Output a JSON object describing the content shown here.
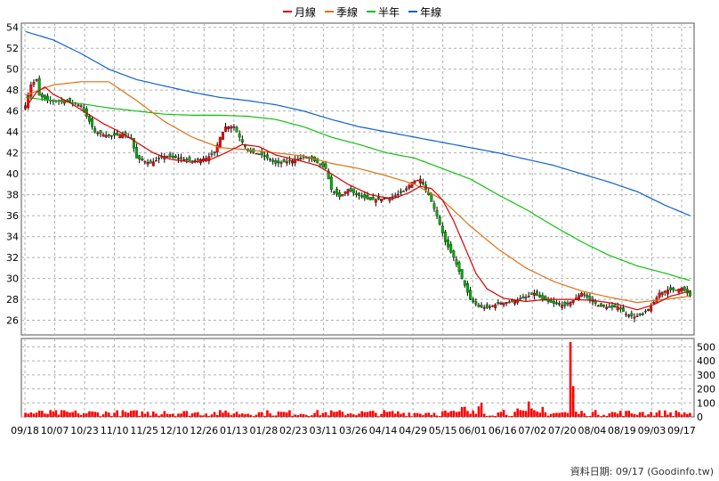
{
  "legend": [
    {
      "label": "月線",
      "color": "#d40000"
    },
    {
      "label": "季線",
      "color": "#e07010"
    },
    {
      "label": "半年",
      "color": "#10c010"
    },
    {
      "label": "年線",
      "color": "#1060d0"
    }
  ],
  "credit": "資料日期: 09/17 (Goodinfo.tw)",
  "colors": {
    "up": "#ff0000",
    "down": "#00b000",
    "volume": "#ff0000",
    "grid": "#b0b0b0"
  },
  "chart_data": {
    "type": "candlestick",
    "price_axis": {
      "ticks": [
        26,
        28,
        30,
        32,
        34,
        36,
        38,
        40,
        42,
        44,
        46,
        48,
        50,
        52,
        54
      ],
      "ylim": [
        24.6,
        54.4
      ]
    },
    "volume_axis": {
      "ticks": [
        0,
        100,
        200,
        300,
        400,
        500
      ],
      "ylim": [
        0,
        560
      ]
    },
    "x_ticks": [
      "09/18",
      "10/07",
      "10/23",
      "11/10",
      "11/25",
      "12/10",
      "12/26",
      "01/13",
      "01/28",
      "02/23",
      "03/11",
      "03/26",
      "04/14",
      "04/29",
      "05/15",
      "06/01",
      "06/16",
      "07/02",
      "07/20",
      "08/04",
      "08/19",
      "09/03",
      "09/17"
    ],
    "candle_count": 240,
    "close_keypoints": [
      [
        0,
        46.5
      ],
      [
        2,
        48.5
      ],
      [
        4,
        49
      ],
      [
        5,
        47.5
      ],
      [
        8,
        47
      ],
      [
        15,
        47
      ],
      [
        20,
        46.5
      ],
      [
        25,
        44
      ],
      [
        30,
        43.6
      ],
      [
        35,
        43.8
      ],
      [
        38,
        43.4
      ],
      [
        40,
        41.5
      ],
      [
        45,
        41
      ],
      [
        50,
        41.7
      ],
      [
        55,
        41.5
      ],
      [
        60,
        41.2
      ],
      [
        65,
        41.5
      ],
      [
        68,
        42
      ],
      [
        70,
        43.5
      ],
      [
        72,
        44.5
      ],
      [
        75,
        44.5
      ],
      [
        78,
        43
      ],
      [
        80,
        42.2
      ],
      [
        85,
        41.8
      ],
      [
        90,
        41
      ],
      [
        95,
        41.2
      ],
      [
        100,
        41.6
      ],
      [
        103,
        41.4
      ],
      [
        108,
        40.5
      ],
      [
        110,
        38.5
      ],
      [
        113,
        37.8
      ],
      [
        116,
        38.5
      ],
      [
        119,
        38
      ],
      [
        124,
        37.5
      ],
      [
        128,
        37.6
      ],
      [
        132,
        37.8
      ],
      [
        136,
        38.3
      ],
      [
        139,
        39.2
      ],
      [
        142,
        39.5
      ],
      [
        145,
        38
      ],
      [
        148,
        36
      ],
      [
        151,
        33.5
      ],
      [
        154,
        32
      ],
      [
        157,
        30
      ],
      [
        160,
        28
      ],
      [
        163,
        27.3
      ],
      [
        166,
        27.2
      ],
      [
        170,
        27.6
      ],
      [
        175,
        27.8
      ],
      [
        180,
        28.2
      ],
      [
        183,
        28.6
      ],
      [
        186,
        28
      ],
      [
        190,
        27.6
      ],
      [
        194,
        27.4
      ],
      [
        197,
        27.9
      ],
      [
        200,
        28.6
      ],
      [
        203,
        28
      ],
      [
        206,
        27.4
      ],
      [
        210,
        27.2
      ],
      [
        213,
        27.3
      ],
      [
        216,
        26.6
      ],
      [
        219,
        26.3
      ],
      [
        222,
        26.6
      ],
      [
        225,
        27.3
      ],
      [
        228,
        28.6
      ],
      [
        231,
        28.9
      ],
      [
        234,
        28.9
      ],
      [
        236,
        29.1
      ],
      [
        238,
        28.6
      ],
      [
        239,
        28.3
      ]
    ],
    "ma_month_keypoints": [
      [
        0,
        46.3
      ],
      [
        4,
        47.8
      ],
      [
        7,
        48.3
      ],
      [
        10,
        47.6
      ],
      [
        16,
        46.8
      ],
      [
        22,
        45.8
      ],
      [
        28,
        44.8
      ],
      [
        34,
        44
      ],
      [
        40,
        43
      ],
      [
        46,
        42
      ],
      [
        52,
        41.4
      ],
      [
        60,
        41.1
      ],
      [
        66,
        41.3
      ],
      [
        72,
        42
      ],
      [
        78,
        42.8
      ],
      [
        84,
        42.6
      ],
      [
        90,
        41.8
      ],
      [
        98,
        41.3
      ],
      [
        105,
        40.8
      ],
      [
        110,
        40
      ],
      [
        116,
        39
      ],
      [
        124,
        38
      ],
      [
        132,
        37.6
      ],
      [
        138,
        38.2
      ],
      [
        142,
        38.8
      ],
      [
        146,
        38.6
      ],
      [
        150,
        37.5
      ],
      [
        154,
        35.5
      ],
      [
        158,
        33
      ],
      [
        162,
        30.5
      ],
      [
        166,
        29
      ],
      [
        172,
        28.1
      ],
      [
        180,
        27.8
      ],
      [
        188,
        28
      ],
      [
        196,
        28
      ],
      [
        204,
        27.9
      ],
      [
        212,
        27.6
      ],
      [
        220,
        27
      ],
      [
        226,
        27.5
      ],
      [
        232,
        28.3
      ],
      [
        239,
        28.8
      ]
    ],
    "ma_quarter_keypoints": [
      [
        0,
        47.5
      ],
      [
        10,
        48.5
      ],
      [
        20,
        48.8
      ],
      [
        30,
        48.8
      ],
      [
        40,
        47
      ],
      [
        50,
        45
      ],
      [
        60,
        43.5
      ],
      [
        70,
        42.5
      ],
      [
        80,
        42.3
      ],
      [
        90,
        42
      ],
      [
        100,
        41.7
      ],
      [
        110,
        41
      ],
      [
        120,
        40.5
      ],
      [
        130,
        39.8
      ],
      [
        140,
        39
      ],
      [
        150,
        37.5
      ],
      [
        160,
        35
      ],
      [
        170,
        32.8
      ],
      [
        180,
        31
      ],
      [
        190,
        29.7
      ],
      [
        200,
        28.8
      ],
      [
        210,
        28.2
      ],
      [
        220,
        27.7
      ],
      [
        230,
        28
      ],
      [
        239,
        28.3
      ]
    ],
    "ma_half_keypoints": [
      [
        0,
        47.3
      ],
      [
        10,
        47
      ],
      [
        20,
        46.7
      ],
      [
        30,
        46.3
      ],
      [
        40,
        46
      ],
      [
        50,
        45.7
      ],
      [
        60,
        45.6
      ],
      [
        70,
        45.6
      ],
      [
        80,
        45.5
      ],
      [
        90,
        45.2
      ],
      [
        100,
        44.5
      ],
      [
        110,
        43.5
      ],
      [
        120,
        42.8
      ],
      [
        130,
        42
      ],
      [
        140,
        41.5
      ],
      [
        150,
        40.5
      ],
      [
        160,
        39.5
      ],
      [
        170,
        38
      ],
      [
        180,
        36.6
      ],
      [
        190,
        35
      ],
      [
        200,
        33.5
      ],
      [
        210,
        32.2
      ],
      [
        220,
        31.2
      ],
      [
        230,
        30.5
      ],
      [
        239,
        29.8
      ]
    ],
    "ma_year_keypoints": [
      [
        0,
        53.6
      ],
      [
        10,
        52.8
      ],
      [
        20,
        51.5
      ],
      [
        30,
        50
      ],
      [
        40,
        49
      ],
      [
        50,
        48.4
      ],
      [
        60,
        47.8
      ],
      [
        70,
        47.3
      ],
      [
        80,
        47
      ],
      [
        90,
        46.6
      ],
      [
        100,
        46
      ],
      [
        110,
        45.2
      ],
      [
        120,
        44.5
      ],
      [
        130,
        44
      ],
      [
        140,
        43.5
      ],
      [
        150,
        43
      ],
      [
        160,
        42.5
      ],
      [
        170,
        42
      ],
      [
        180,
        41.4
      ],
      [
        190,
        40.8
      ],
      [
        200,
        40
      ],
      [
        210,
        39.2
      ],
      [
        220,
        38.3
      ],
      [
        230,
        37
      ],
      [
        239,
        36
      ]
    ],
    "volume_spikes": [
      [
        19,
        25
      ],
      [
        46,
        38
      ],
      [
        50,
        42
      ],
      [
        71,
        30
      ],
      [
        88,
        25
      ],
      [
        145,
        30
      ],
      [
        151,
        45
      ],
      [
        157,
        70
      ],
      [
        158,
        72
      ],
      [
        163,
        75
      ],
      [
        164,
        100
      ],
      [
        172,
        50
      ],
      [
        177,
        60
      ],
      [
        181,
        110
      ],
      [
        182,
        60
      ],
      [
        186,
        70
      ],
      [
        196,
        535
      ],
      [
        197,
        220
      ],
      [
        201,
        25
      ],
      [
        222,
        35
      ]
    ]
  }
}
